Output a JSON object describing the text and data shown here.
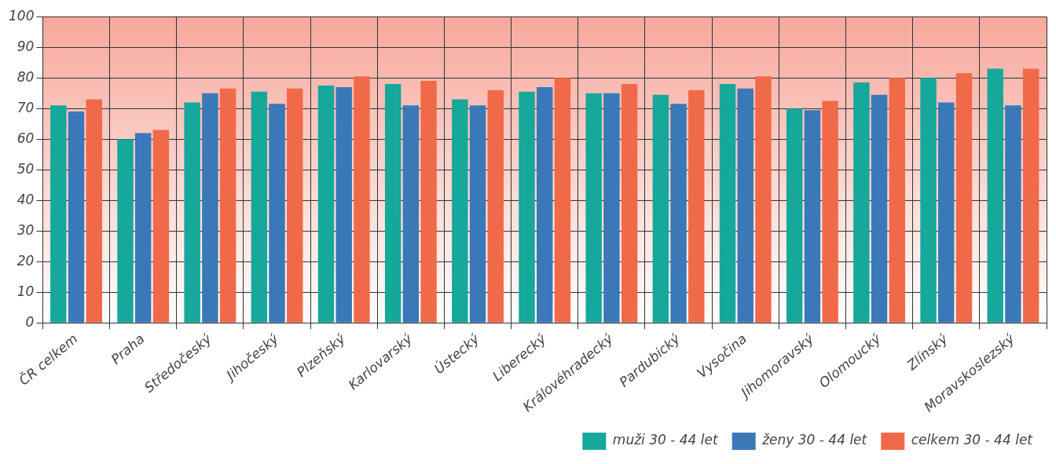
{
  "chart_data": {
    "type": "bar",
    "categories": [
      "ČR celkem",
      "Praha",
      "Středočeský",
      "Jihočeský",
      "Plzeňský",
      "Karlovarský",
      "Ústecký",
      "Liberecký",
      "Královéhradecký",
      "Pardubický",
      "Vysočina",
      "Jihomoravský",
      "Olomoucký",
      "Zlínský",
      "Moravskoslezský"
    ],
    "series": [
      {
        "name": "muži 30 - 44 let",
        "color": "#16a89a",
        "values": [
          71,
          60,
          72,
          75.5,
          77.5,
          78,
          73,
          75.5,
          75,
          74.5,
          78,
          70,
          78.5,
          80,
          83
        ]
      },
      {
        "name": "ženy 30 - 44 let",
        "color": "#3a78b8",
        "values": [
          69,
          62,
          75,
          71.5,
          77,
          71,
          71,
          77,
          75,
          71.5,
          76.5,
          69.5,
          74.5,
          72,
          71
        ]
      },
      {
        "name": "celkem 30 - 44 let",
        "color": "#f06a4a",
        "values": [
          73,
          63,
          76.5,
          76.5,
          80.5,
          79,
          76,
          80,
          78,
          76,
          80.5,
          72.5,
          80,
          81.5,
          83
        ]
      }
    ],
    "ylim": [
      0,
      100
    ],
    "yticks": [
      0,
      10,
      20,
      30,
      40,
      50,
      60,
      70,
      80,
      90,
      100
    ],
    "grid": true,
    "legend": "bottom right"
  }
}
